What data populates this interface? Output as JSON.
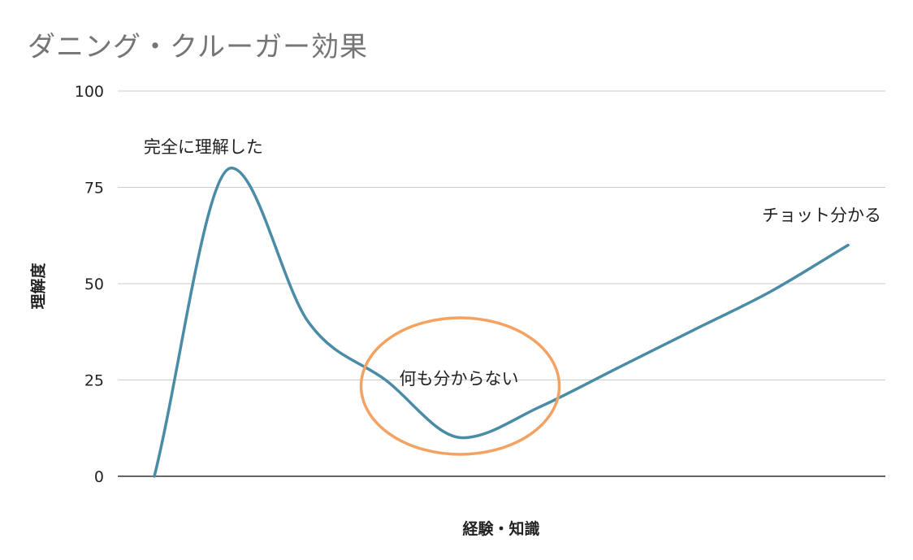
{
  "chart_data": {
    "type": "line",
    "title": "ダニング・クルーガー効果",
    "xlabel": "経験・知識",
    "ylabel": "理解度",
    "ylim": [
      0,
      100
    ],
    "yticks": [
      0,
      25,
      50,
      75,
      100
    ],
    "grid": true,
    "legend": "none",
    "series": [
      {
        "color": "#4a8ca5",
        "points": [
          [
            0,
            0
          ],
          [
            1,
            80
          ],
          [
            2,
            40
          ],
          [
            3,
            25
          ],
          [
            4,
            10
          ],
          [
            5,
            18
          ],
          [
            6,
            28
          ],
          [
            7,
            38
          ],
          [
            8,
            48
          ],
          [
            9,
            60
          ]
        ]
      }
    ],
    "annotations": [
      {
        "text": "完全に理解した",
        "x": 1,
        "y": 80
      },
      {
        "text": "何も分からない",
        "x": 4,
        "y": 10
      },
      {
        "text": "チョット分かる",
        "x": 9,
        "y": 60
      }
    ],
    "highlight_color": "#f4a261"
  }
}
